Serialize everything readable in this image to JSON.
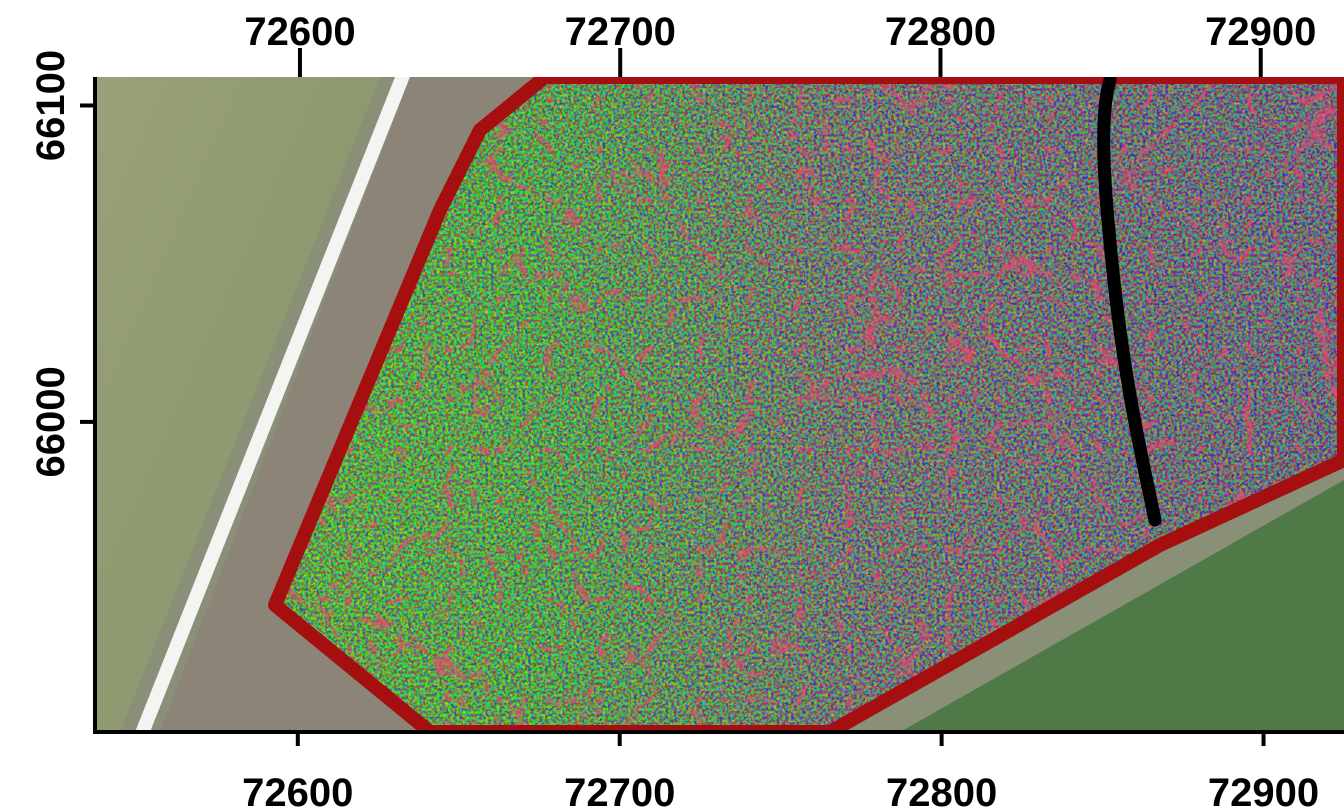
{
  "map": {
    "top_axis": {
      "lim": [
        72536,
        72926
      ],
      "ticks": [
        72600,
        72700,
        72800,
        72900
      ]
    },
    "bottom_axis": {
      "lim": [
        72537,
        72925
      ],
      "ticks": [
        72600,
        72700,
        72800,
        72900
      ]
    },
    "left_axis": {
      "lim": [
        65902,
        66109
      ],
      "ticks": [
        66000,
        66100
      ]
    }
  }
}
